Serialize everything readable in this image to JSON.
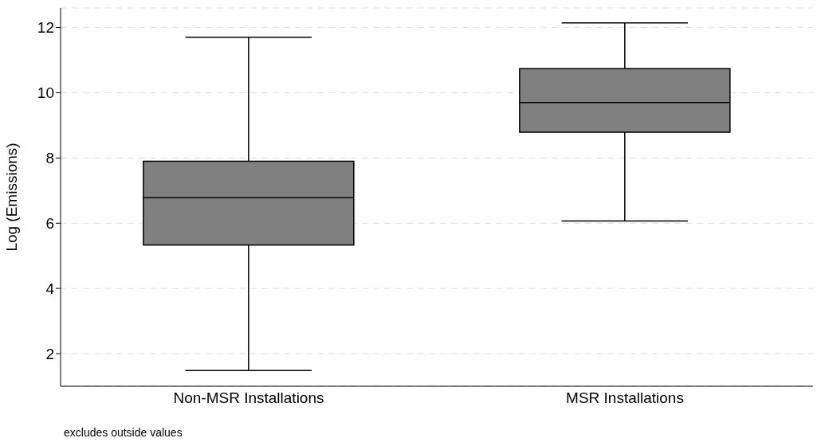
{
  "chart_data": {
    "type": "box",
    "ylabel": "Log (Emissions)",
    "categories": [
      "Non-MSR Installations",
      "MSR Installations"
    ],
    "boxes": [
      {
        "low": 1.48,
        "q1": 5.33,
        "median": 6.78,
        "q3": 7.9,
        "high": 11.7
      },
      {
        "low": 6.07,
        "q1": 8.79,
        "median": 9.7,
        "q3": 10.74,
        "high": 12.14
      }
    ],
    "color": "#808080",
    "ylim": [
      1,
      12.6
    ],
    "yticks": [
      2,
      4,
      6,
      8,
      10,
      12
    ],
    "grid": "y",
    "annotations": [
      "excludes outside values"
    ]
  }
}
